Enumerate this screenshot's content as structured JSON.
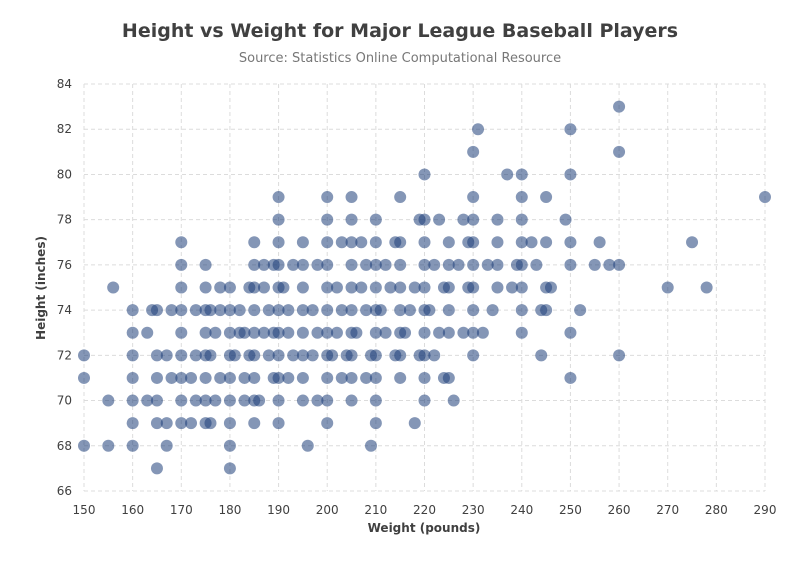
{
  "chart_data": {
    "type": "scatter",
    "title": "Height vs Weight for Major League Baseball Players",
    "subtitle": "Source: Statistics Online Computational Resource",
    "xlabel": "Weight (pounds)",
    "ylabel": "Height (inches)",
    "xlim": [
      150,
      290
    ],
    "ylim": [
      66,
      84
    ],
    "xticks": [
      150,
      160,
      170,
      180,
      190,
      200,
      210,
      220,
      230,
      240,
      250,
      260,
      270,
      280,
      290
    ],
    "yticks": [
      66,
      68,
      70,
      72,
      74,
      76,
      78,
      80,
      82,
      84
    ],
    "grid": true,
    "legend": "none",
    "colors": {
      "point": "#1f3f7a",
      "grid": "#dcdcdc",
      "axis_text": "#404040"
    },
    "series": [
      {
        "points": [
          [
            150,
            68
          ],
          [
            150,
            71
          ],
          [
            150,
            72
          ],
          [
            155,
            68
          ],
          [
            155,
            70
          ],
          [
            156,
            75
          ],
          [
            160,
            68
          ],
          [
            160,
            69
          ],
          [
            160,
            70
          ],
          [
            160,
            71
          ],
          [
            160,
            72
          ],
          [
            160,
            73
          ],
          [
            160,
            74
          ],
          [
            163,
            70
          ],
          [
            163,
            73
          ],
          [
            164,
            74
          ],
          [
            165,
            67
          ],
          [
            165,
            69
          ],
          [
            165,
            70
          ],
          [
            165,
            71
          ],
          [
            165,
            72
          ],
          [
            165,
            74
          ],
          [
            167,
            68
          ],
          [
            167,
            69
          ],
          [
            167,
            72
          ],
          [
            168,
            71
          ],
          [
            168,
            74
          ],
          [
            170,
            69
          ],
          [
            170,
            70
          ],
          [
            170,
            71
          ],
          [
            170,
            72
          ],
          [
            170,
            73
          ],
          [
            170,
            74
          ],
          [
            170,
            75
          ],
          [
            170,
            76
          ],
          [
            170,
            77
          ],
          [
            172,
            69
          ],
          [
            172,
            71
          ],
          [
            173,
            70
          ],
          [
            173,
            72
          ],
          [
            173,
            74
          ],
          [
            175,
            69
          ],
          [
            175,
            70
          ],
          [
            175,
            71
          ],
          [
            175,
            72
          ],
          [
            175,
            73
          ],
          [
            175,
            74
          ],
          [
            175,
            75
          ],
          [
            175,
            76
          ],
          [
            176,
            69
          ],
          [
            176,
            72
          ],
          [
            176,
            74
          ],
          [
            177,
            70
          ],
          [
            177,
            73
          ],
          [
            178,
            71
          ],
          [
            178,
            74
          ],
          [
            178,
            75
          ],
          [
            180,
            67
          ],
          [
            180,
            68
          ],
          [
            180,
            69
          ],
          [
            180,
            70
          ],
          [
            180,
            71
          ],
          [
            180,
            72
          ],
          [
            180,
            73
          ],
          [
            180,
            74
          ],
          [
            180,
            75
          ],
          [
            181,
            72
          ],
          [
            182,
            73
          ],
          [
            182,
            74
          ],
          [
            183,
            70
          ],
          [
            183,
            71
          ],
          [
            183,
            73
          ],
          [
            184,
            72
          ],
          [
            184,
            75
          ],
          [
            185,
            69
          ],
          [
            185,
            70
          ],
          [
            185,
            71
          ],
          [
            185,
            72
          ],
          [
            185,
            73
          ],
          [
            185,
            74
          ],
          [
            185,
            75
          ],
          [
            185,
            76
          ],
          [
            185,
            77
          ],
          [
            186,
            70
          ],
          [
            187,
            73
          ],
          [
            187,
            75
          ],
          [
            187,
            76
          ],
          [
            188,
            72
          ],
          [
            188,
            74
          ],
          [
            189,
            71
          ],
          [
            189,
            73
          ],
          [
            189,
            76
          ],
          [
            190,
            69
          ],
          [
            190,
            70
          ],
          [
            190,
            71
          ],
          [
            190,
            72
          ],
          [
            190,
            73
          ],
          [
            190,
            74
          ],
          [
            190,
            75
          ],
          [
            190,
            76
          ],
          [
            190,
            77
          ],
          [
            190,
            78
          ],
          [
            190,
            79
          ],
          [
            191,
            75
          ],
          [
            192,
            71
          ],
          [
            192,
            73
          ],
          [
            192,
            74
          ],
          [
            193,
            72
          ],
          [
            193,
            76
          ],
          [
            195,
            70
          ],
          [
            195,
            71
          ],
          [
            195,
            72
          ],
          [
            195,
            73
          ],
          [
            195,
            74
          ],
          [
            195,
            75
          ],
          [
            195,
            76
          ],
          [
            195,
            77
          ],
          [
            196,
            68
          ],
          [
            197,
            72
          ],
          [
            197,
            74
          ],
          [
            198,
            70
          ],
          [
            198,
            73
          ],
          [
            198,
            76
          ],
          [
            200,
            69
          ],
          [
            200,
            70
          ],
          [
            200,
            71
          ],
          [
            200,
            72
          ],
          [
            200,
            73
          ],
          [
            200,
            74
          ],
          [
            200,
            75
          ],
          [
            200,
            76
          ],
          [
            200,
            77
          ],
          [
            200,
            78
          ],
          [
            200,
            79
          ],
          [
            201,
            72
          ],
          [
            202,
            73
          ],
          [
            202,
            75
          ],
          [
            203,
            71
          ],
          [
            203,
            74
          ],
          [
            203,
            77
          ],
          [
            204,
            72
          ],
          [
            205,
            70
          ],
          [
            205,
            71
          ],
          [
            205,
            72
          ],
          [
            205,
            73
          ],
          [
            205,
            74
          ],
          [
            205,
            75
          ],
          [
            205,
            76
          ],
          [
            205,
            77
          ],
          [
            205,
            78
          ],
          [
            205,
            79
          ],
          [
            206,
            73
          ],
          [
            207,
            75
          ],
          [
            207,
            77
          ],
          [
            208,
            71
          ],
          [
            208,
            74
          ],
          [
            208,
            76
          ],
          [
            209,
            68
          ],
          [
            209,
            72
          ],
          [
            210,
            69
          ],
          [
            210,
            70
          ],
          [
            210,
            71
          ],
          [
            210,
            72
          ],
          [
            210,
            73
          ],
          [
            210,
            74
          ],
          [
            210,
            75
          ],
          [
            210,
            76
          ],
          [
            210,
            77
          ],
          [
            210,
            78
          ],
          [
            211,
            74
          ],
          [
            212,
            73
          ],
          [
            212,
            76
          ],
          [
            213,
            75
          ],
          [
            214,
            72
          ],
          [
            214,
            77
          ],
          [
            215,
            71
          ],
          [
            215,
            72
          ],
          [
            215,
            73
          ],
          [
            215,
            74
          ],
          [
            215,
            75
          ],
          [
            215,
            76
          ],
          [
            215,
            77
          ],
          [
            215,
            79
          ],
          [
            216,
            73
          ],
          [
            217,
            74
          ],
          [
            218,
            69
          ],
          [
            218,
            75
          ],
          [
            219,
            72
          ],
          [
            219,
            78
          ],
          [
            220,
            70
          ],
          [
            220,
            71
          ],
          [
            220,
            72
          ],
          [
            220,
            73
          ],
          [
            220,
            74
          ],
          [
            220,
            75
          ],
          [
            220,
            76
          ],
          [
            220,
            77
          ],
          [
            220,
            78
          ],
          [
            220,
            80
          ],
          [
            221,
            74
          ],
          [
            222,
            72
          ],
          [
            222,
            76
          ],
          [
            223,
            73
          ],
          [
            223,
            78
          ],
          [
            224,
            71
          ],
          [
            224,
            75
          ],
          [
            225,
            71
          ],
          [
            225,
            73
          ],
          [
            225,
            74
          ],
          [
            225,
            75
          ],
          [
            225,
            76
          ],
          [
            225,
            77
          ],
          [
            226,
            70
          ],
          [
            227,
            76
          ],
          [
            228,
            73
          ],
          [
            228,
            78
          ],
          [
            229,
            75
          ],
          [
            229,
            77
          ],
          [
            230,
            72
          ],
          [
            230,
            73
          ],
          [
            230,
            74
          ],
          [
            230,
            75
          ],
          [
            230,
            76
          ],
          [
            230,
            77
          ],
          [
            230,
            78
          ],
          [
            230,
            79
          ],
          [
            230,
            81
          ],
          [
            231,
            82
          ],
          [
            232,
            73
          ],
          [
            233,
            76
          ],
          [
            234,
            74
          ],
          [
            235,
            75
          ],
          [
            235,
            76
          ],
          [
            235,
            77
          ],
          [
            235,
            78
          ],
          [
            237,
            80
          ],
          [
            238,
            75
          ],
          [
            239,
            76
          ],
          [
            240,
            73
          ],
          [
            240,
            74
          ],
          [
            240,
            75
          ],
          [
            240,
            76
          ],
          [
            240,
            77
          ],
          [
            240,
            78
          ],
          [
            240,
            79
          ],
          [
            240,
            80
          ],
          [
            242,
            77
          ],
          [
            243,
            76
          ],
          [
            244,
            72
          ],
          [
            244,
            74
          ],
          [
            245,
            74
          ],
          [
            245,
            75
          ],
          [
            245,
            77
          ],
          [
            245,
            79
          ],
          [
            246,
            75
          ],
          [
            249,
            78
          ],
          [
            250,
            71
          ],
          [
            250,
            73
          ],
          [
            250,
            76
          ],
          [
            250,
            77
          ],
          [
            250,
            80
          ],
          [
            250,
            82
          ],
          [
            252,
            74
          ],
          [
            255,
            76
          ],
          [
            256,
            77
          ],
          [
            258,
            76
          ],
          [
            260,
            72
          ],
          [
            260,
            76
          ],
          [
            260,
            81
          ],
          [
            260,
            83
          ],
          [
            270,
            75
          ],
          [
            275,
            77
          ],
          [
            278,
            75
          ],
          [
            290,
            79
          ]
        ]
      }
    ]
  }
}
